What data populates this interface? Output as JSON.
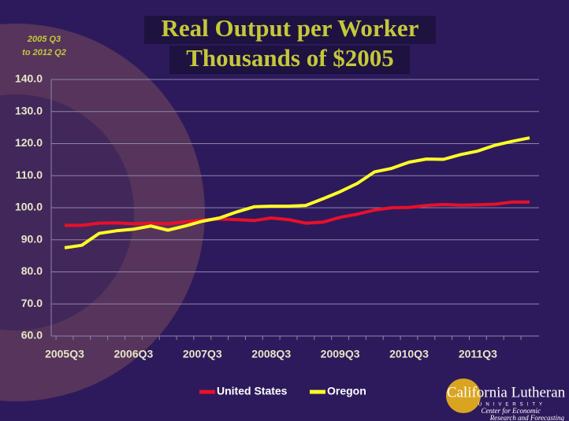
{
  "chart_data": {
    "type": "line",
    "title": "Real Output per Worker",
    "subtitle": "Thousands of $2005",
    "annotation": [
      "2005 Q3",
      "to 2012 Q2"
    ],
    "categories": [
      "2005Q3",
      null,
      null,
      null,
      "2006Q3",
      null,
      null,
      null,
      "2007Q3",
      null,
      null,
      null,
      "2008Q3",
      null,
      null,
      null,
      "2009Q3",
      null,
      null,
      null,
      "2010Q3",
      null,
      null,
      null,
      "2011Q3",
      null,
      null,
      null
    ],
    "series": [
      {
        "name": "United States",
        "color": "#e8102a",
        "values": [
          94.5,
          94.5,
          95.2,
          95.3,
          95.0,
          95.2,
          95.0,
          95.6,
          96.2,
          96.5,
          96.3,
          96.0,
          96.8,
          96.3,
          95.2,
          95.5,
          97.0,
          98.0,
          99.3,
          100.0,
          100.1,
          100.7,
          101.0,
          100.8,
          100.9,
          101.1,
          101.8,
          101.8
        ]
      },
      {
        "name": "Oregon",
        "color": "#ffff26",
        "values": [
          87.5,
          88.3,
          92.0,
          92.8,
          93.3,
          94.3,
          93.0,
          94.3,
          95.8,
          96.8,
          98.7,
          100.3,
          100.5,
          100.5,
          100.7,
          102.8,
          105.0,
          107.6,
          111.2,
          112.3,
          114.2,
          115.2,
          115.1,
          116.6,
          117.7,
          119.5,
          120.7,
          121.8
        ]
      }
    ],
    "ylim": [
      60,
      140
    ],
    "yticks": [
      {
        "value": 60,
        "label": "60.0"
      },
      {
        "value": 70,
        "label": "70.0"
      },
      {
        "value": 80,
        "label": "80.0"
      },
      {
        "value": 90,
        "label": "90.0"
      },
      {
        "value": 100,
        "label": "100.0"
      },
      {
        "value": 110,
        "label": "110.0"
      },
      {
        "value": 120,
        "label": "120.0"
      },
      {
        "value": 130,
        "label": "130.0"
      },
      {
        "value": 140,
        "label": "140.0"
      }
    ],
    "grid": true,
    "legend": "bottom"
  },
  "logo": {
    "name": "California Lutheran",
    "sub": "UNIVERSITY",
    "center": [
      "Center for Economic",
      "Research and Forecasting"
    ]
  }
}
